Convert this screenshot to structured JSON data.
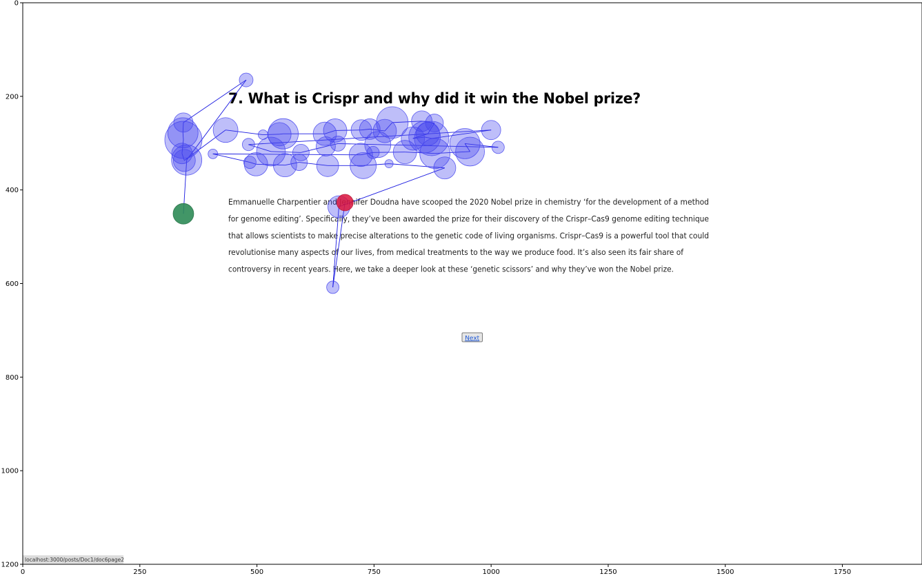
{
  "screen": {
    "title": "7. What is Crispr and why did it win the Nobel prize?",
    "paragraph_lines": [
      "Emmanuelle Charpentier and Jennifer Doudna have scooped the 2020 Nobel prize in chemistry ‘for the development of a method",
      "for genome editing’. Specifically, they’ve been awarded the prize for their discovery of the Crispr–Cas9 genome editing technique",
      "that allows scientists to make precise alterations to the genetic code of living organisms. Crispr–Cas9 is a powerful tool that could",
      "revolutionise many aspects of our lives, from medical treatments to the way we produce food. It’s also seen its fair share of",
      "controversy in recent years. Here, we take a deeper look at these ‘genetic scissors’ and why they’ve won the Nobel prize."
    ],
    "next_button_label": "Next",
    "status_url": "localhost:3000/posts/Doc1/doc6page2"
  },
  "chart_data": {
    "type": "scatter",
    "title": "",
    "xlabel": "",
    "ylabel": "",
    "xlim": [
      0,
      1920
    ],
    "ylim": [
      1200,
      0
    ],
    "y_inverted": true,
    "xticks": [
      0,
      250,
      500,
      750,
      1000,
      1250,
      1500,
      1750
    ],
    "yticks": [
      0,
      200,
      400,
      600,
      800,
      1000,
      1200
    ],
    "grid": false,
    "legend": "none",
    "colors": {
      "fixation": "#4444ee",
      "scanpath": "#0000dd",
      "first_fixation": "#2e8b57",
      "last_fixation": "#dc143c"
    },
    "fixations": [
      {
        "x": 343,
        "y": 451,
        "r": 15,
        "role": "first"
      },
      {
        "x": 350,
        "y": 336,
        "r": 22
      },
      {
        "x": 477,
        "y": 165,
        "r": 10
      },
      {
        "x": 343,
        "y": 256,
        "r": 14
      },
      {
        "x": 342,
        "y": 278,
        "r": 22
      },
      {
        "x": 343,
        "y": 293,
        "r": 27
      },
      {
        "x": 340,
        "y": 322,
        "r": 15
      },
      {
        "x": 345,
        "y": 337,
        "r": 16
      },
      {
        "x": 433,
        "y": 272,
        "r": 18
      },
      {
        "x": 513,
        "y": 282,
        "r": 7
      },
      {
        "x": 548,
        "y": 281,
        "r": 17
      },
      {
        "x": 556,
        "y": 280,
        "r": 22
      },
      {
        "x": 645,
        "y": 280,
        "r": 17
      },
      {
        "x": 667,
        "y": 273,
        "r": 17
      },
      {
        "x": 723,
        "y": 272,
        "r": 15
      },
      {
        "x": 741,
        "y": 270,
        "r": 15
      },
      {
        "x": 773,
        "y": 274,
        "r": 17
      },
      {
        "x": 789,
        "y": 256,
        "r": 23
      },
      {
        "x": 852,
        "y": 253,
        "r": 15
      },
      {
        "x": 879,
        "y": 257,
        "r": 13
      },
      {
        "x": 865,
        "y": 280,
        "r": 17
      },
      {
        "x": 833,
        "y": 290,
        "r": 17
      },
      {
        "x": 858,
        "y": 287,
        "r": 23
      },
      {
        "x": 873,
        "y": 290,
        "r": 25
      },
      {
        "x": 1000,
        "y": 272,
        "r": 14
      },
      {
        "x": 482,
        "y": 303,
        "r": 9
      },
      {
        "x": 530,
        "y": 318,
        "r": 21
      },
      {
        "x": 594,
        "y": 320,
        "r": 12
      },
      {
        "x": 647,
        "y": 307,
        "r": 14
      },
      {
        "x": 673,
        "y": 301,
        "r": 11
      },
      {
        "x": 758,
        "y": 303,
        "r": 19
      },
      {
        "x": 1015,
        "y": 309,
        "r": 9
      },
      {
        "x": 944,
        "y": 301,
        "r": 22
      },
      {
        "x": 955,
        "y": 318,
        "r": 21
      },
      {
        "x": 880,
        "y": 322,
        "r": 22
      },
      {
        "x": 816,
        "y": 319,
        "r": 17
      },
      {
        "x": 748,
        "y": 320,
        "r": 9
      },
      {
        "x": 722,
        "y": 325,
        "r": 17
      },
      {
        "x": 406,
        "y": 323,
        "r": 7
      },
      {
        "x": 485,
        "y": 341,
        "r": 9
      },
      {
        "x": 498,
        "y": 345,
        "r": 17
      },
      {
        "x": 560,
        "y": 347,
        "r": 17
      },
      {
        "x": 590,
        "y": 341,
        "r": 12
      },
      {
        "x": 651,
        "y": 348,
        "r": 16
      },
      {
        "x": 727,
        "y": 348,
        "r": 19
      },
      {
        "x": 782,
        "y": 344,
        "r": 6
      },
      {
        "x": 901,
        "y": 353,
        "r": 16
      },
      {
        "x": 675,
        "y": 436,
        "r": 16
      },
      {
        "x": 662,
        "y": 608,
        "r": 9
      },
      {
        "x": 688,
        "y": 427,
        "r": 12,
        "role": "last"
      }
    ]
  }
}
